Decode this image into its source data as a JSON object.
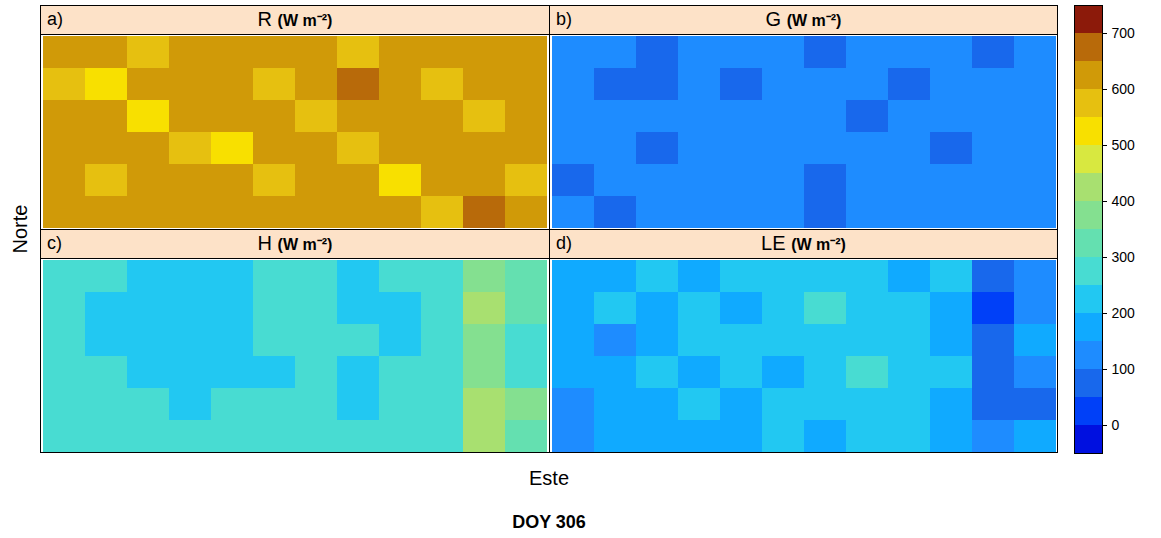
{
  "chart_data": {
    "type": "heatmap",
    "xlabel": "Este",
    "ylabel": "Norte",
    "caption": "DOY 306",
    "tick_labels": false,
    "colorbar": {
      "range": [
        -50,
        750
      ],
      "ticks": [
        0,
        100,
        200,
        300,
        400,
        500,
        600,
        700
      ],
      "levels": [
        -50,
        0,
        50,
        100,
        150,
        200,
        250,
        300,
        350,
        400,
        450,
        500,
        550,
        600,
        650,
        700,
        750
      ],
      "colors": [
        "#0010e0",
        "#0040f8",
        "#1868ec",
        "#1e8cff",
        "#10aaff",
        "#22c8f2",
        "#48dcd2",
        "#64e0b0",
        "#84e090",
        "#a8e070",
        "#d8e840",
        "#f8e000",
        "#e6c010",
        "#d09a08",
        "#b86a0a",
        "#8c1a0a"
      ]
    },
    "panels": [
      {
        "letter": "a)",
        "title": "R",
        "units": "(W m⁻²)",
        "cells": [
          [
            610,
            630,
            590,
            620,
            600,
            640,
            610,
            590,
            620,
            630,
            600,
            620
          ],
          [
            590,
            520,
            620,
            600,
            630,
            580,
            610,
            660,
            600,
            580,
            620,
            610
          ],
          [
            620,
            600,
            540,
            630,
            610,
            620,
            590,
            600,
            630,
            610,
            590,
            640
          ],
          [
            600,
            630,
            610,
            590,
            520,
            630,
            610,
            580,
            620,
            600,
            630,
            600
          ],
          [
            630,
            590,
            620,
            610,
            600,
            590,
            640,
            610,
            530,
            620,
            610,
            590
          ],
          [
            610,
            620,
            600,
            630,
            610,
            620,
            600,
            630,
            610,
            590,
            660,
            620
          ]
        ]
      },
      {
        "letter": "b)",
        "title": "G",
        "units": "(W m⁻²)",
        "cells": [
          [
            120,
            110,
            90,
            120,
            125,
            120,
            95,
            115,
            120,
            125,
            80,
            120
          ],
          [
            125,
            85,
            90,
            120,
            90,
            120,
            110,
            125,
            90,
            115,
            120,
            125
          ],
          [
            120,
            125,
            120,
            130,
            125,
            120,
            125,
            85,
            120,
            125,
            120,
            130
          ],
          [
            125,
            120,
            90,
            125,
            120,
            120,
            125,
            130,
            120,
            95,
            125,
            120
          ],
          [
            95,
            120,
            125,
            120,
            125,
            120,
            90,
            120,
            125,
            120,
            125,
            120
          ],
          [
            120,
            90,
            125,
            120,
            125,
            110,
            85,
            125,
            120,
            125,
            120,
            125
          ]
        ]
      },
      {
        "letter": "c)",
        "title": "H",
        "units": "(W m⁻²)",
        "cells": [
          [
            270,
            260,
            240,
            230,
            240,
            260,
            270,
            240,
            250,
            260,
            380,
            330
          ],
          [
            280,
            240,
            230,
            220,
            230,
            250,
            260,
            240,
            230,
            280,
            420,
            300
          ],
          [
            270,
            230,
            220,
            230,
            240,
            250,
            250,
            260,
            240,
            250,
            360,
            290
          ],
          [
            260,
            250,
            240,
            240,
            230,
            240,
            250,
            240,
            260,
            270,
            350,
            280
          ],
          [
            270,
            260,
            250,
            240,
            250,
            260,
            250,
            240,
            260,
            280,
            420,
            350
          ],
          [
            260,
            270,
            260,
            250,
            260,
            250,
            260,
            250,
            250,
            270,
            400,
            310
          ]
        ]
      },
      {
        "letter": "d)",
        "title": "LE",
        "units": "(W m⁻²)",
        "cells": [
          [
            180,
            160,
            200,
            190,
            220,
            210,
            230,
            200,
            190,
            210,
            60,
            110
          ],
          [
            150,
            200,
            170,
            210,
            190,
            240,
            260,
            220,
            200,
            180,
            30,
            130
          ],
          [
            170,
            140,
            190,
            220,
            200,
            230,
            210,
            240,
            220,
            190,
            80,
            150
          ],
          [
            160,
            180,
            200,
            170,
            210,
            190,
            220,
            260,
            230,
            200,
            90,
            140
          ],
          [
            140,
            170,
            190,
            210,
            180,
            220,
            200,
            210,
            240,
            180,
            50,
            60
          ],
          [
            120,
            150,
            170,
            160,
            190,
            200,
            190,
            210,
            220,
            160,
            100,
            170
          ]
        ]
      }
    ]
  }
}
